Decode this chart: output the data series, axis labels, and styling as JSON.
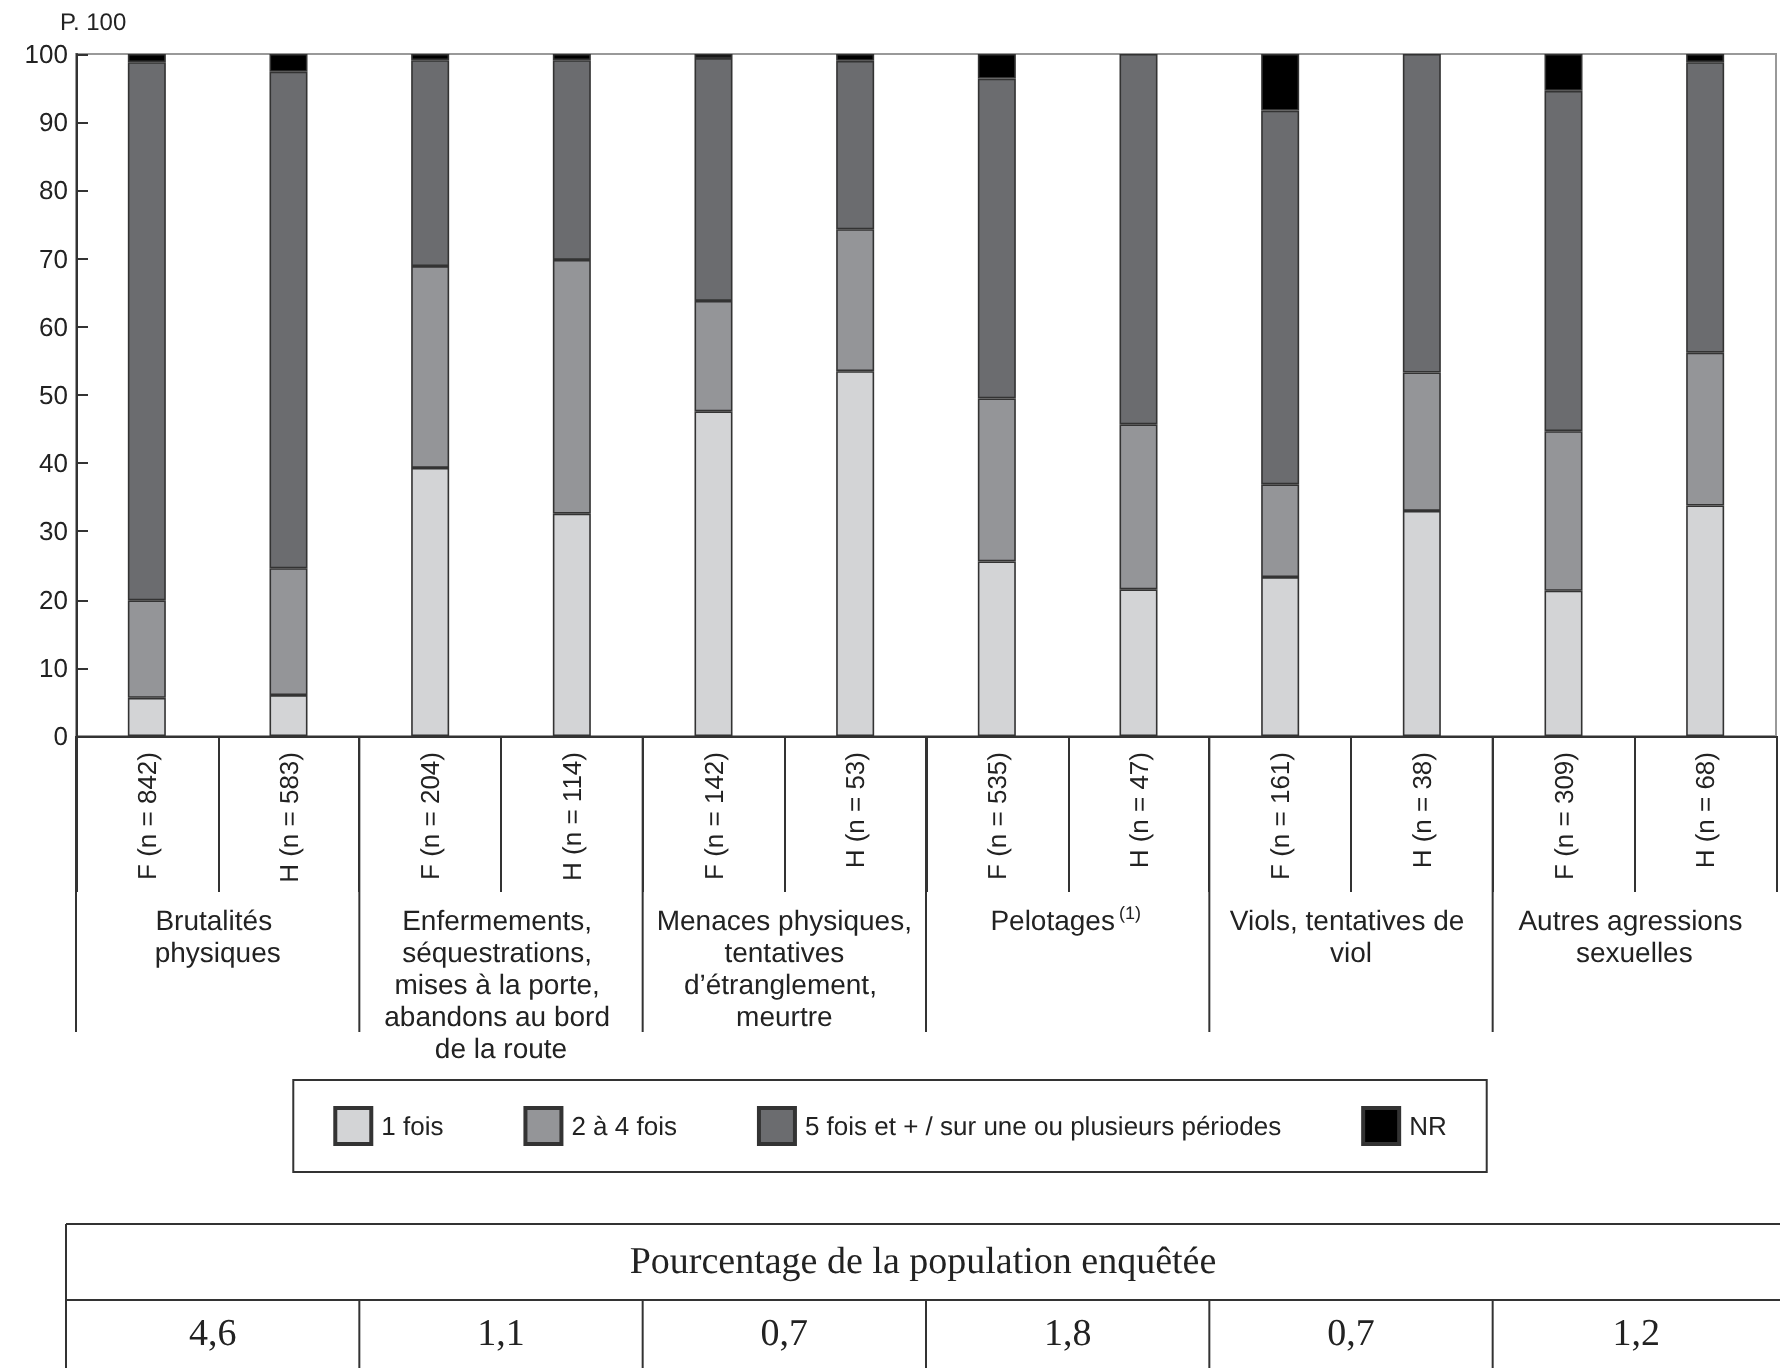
{
  "chart_data": {
    "type": "bar",
    "stacked": true,
    "ylabel": "P. 100",
    "categories": [
      "F (n = 842)",
      "H (n = 583)",
      "F (n = 204)",
      "H (n = 114)",
      "F (n = 142)",
      "H (n = 53)",
      "F (n = 535)",
      "H (n = 47)",
      "F (n = 161)",
      "H (n = 38)",
      "F (n = 309)",
      "H (n = 68)"
    ],
    "series": [
      {
        "name": "1 fois",
        "color": "#d3d4d6",
        "values": [
          5.6,
          6,
          39.3,
          32.6,
          47.6,
          53.5,
          25.6,
          21.5,
          23.3,
          33,
          21.3,
          33.8
        ]
      },
      {
        "name": "2 à 4 fois",
        "color": "#949598",
        "values": [
          14.3,
          18.6,
          29.6,
          37.2,
          16.2,
          20.8,
          23.9,
          24.2,
          13.6,
          20.3,
          23.4,
          22.4
        ]
      },
      {
        "name": "5 fois et + / sur une ou plusieurs périodes",
        "color": "#6b6c6f",
        "values": [
          78.9,
          72.8,
          30.2,
          29.3,
          35.6,
          24.7,
          46.9,
          54.3,
          54.8,
          46.7,
          49.9,
          42.6
        ]
      },
      {
        "name": "NR",
        "color": "#000000",
        "values": [
          1.2,
          2.6,
          0.9,
          0.9,
          0.6,
          1,
          3.6,
          0,
          8.3,
          0,
          5.4,
          1.2
        ]
      }
    ],
    "ylim": [
      0,
      100
    ],
    "yticks": [
      0,
      10,
      20,
      30,
      40,
      50,
      60,
      70,
      80,
      90,
      100
    ],
    "grid": false,
    "legend": "bottom",
    "annotations": [
      "Brutalités physiques",
      "Enfermements, séquestrations, mises à la porte, abandons au bord de la route",
      "Menaces physiques, tentatives d’étranglement, meurtre",
      "Pelotages$^{(1)}$",
      "Viols, tentatives de viol",
      "Autres agressions sexuelles",
      "Pourcentage de la population enquêtée",
      "4,6",
      "1,1",
      "0,7",
      "1,8",
      "0,7",
      "1,2"
    ]
  }
}
